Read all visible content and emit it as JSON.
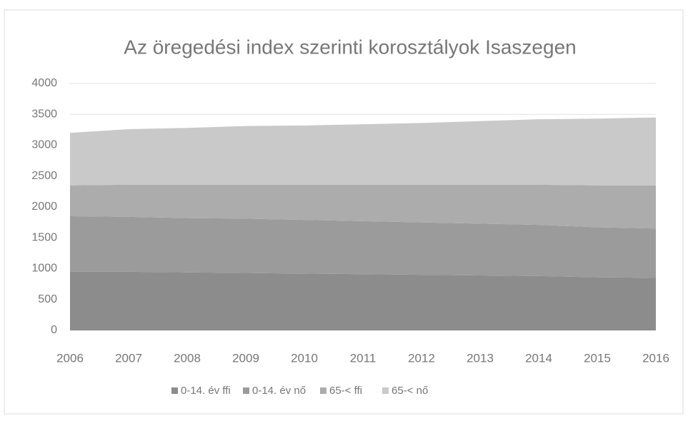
{
  "chart_data": {
    "type": "stacked_area",
    "title": "Az öregedési index szerinti korosztályok Isaszegen",
    "x": [
      2006,
      2007,
      2008,
      2009,
      2010,
      2011,
      2012,
      2013,
      2014,
      2015,
      2016
    ],
    "series": [
      {
        "name": "0-14. év ffi",
        "color": "#8c8c8c",
        "values": [
          950,
          950,
          940,
          930,
          920,
          910,
          900,
          890,
          880,
          860,
          850
        ]
      },
      {
        "name": "0-14. év nő",
        "color": "#9b9b9b",
        "values": [
          900,
          890,
          880,
          880,
          870,
          860,
          850,
          840,
          830,
          810,
          800
        ]
      },
      {
        "name": "65-< ffi",
        "color": "#acacac",
        "values": [
          500,
          520,
          540,
          550,
          570,
          590,
          610,
          630,
          650,
          680,
          700
        ]
      },
      {
        "name": "65-< nő",
        "color": "#c9c9c9",
        "values": [
          850,
          900,
          920,
          950,
          960,
          980,
          1000,
          1030,
          1060,
          1080,
          1100
        ]
      }
    ],
    "ylim": [
      0,
      4000
    ],
    "yticks": [
      0,
      500,
      1000,
      1500,
      2000,
      2500,
      3000,
      3500,
      4000
    ],
    "xlim": [
      2006,
      2016
    ],
    "grid": true,
    "legend": "bottom"
  }
}
